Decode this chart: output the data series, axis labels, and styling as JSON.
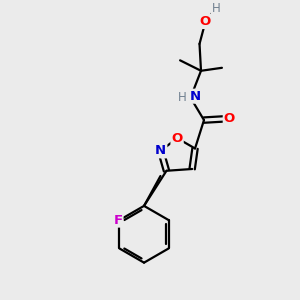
{
  "bg_color": "#ebebeb",
  "bond_color": "#000000",
  "atom_colors": {
    "O": "#ff0000",
    "N": "#0000cd",
    "F": "#cc00cc",
    "H": "#708090",
    "C": "#000000"
  },
  "font_size": 9.5,
  "linewidth": 1.6
}
